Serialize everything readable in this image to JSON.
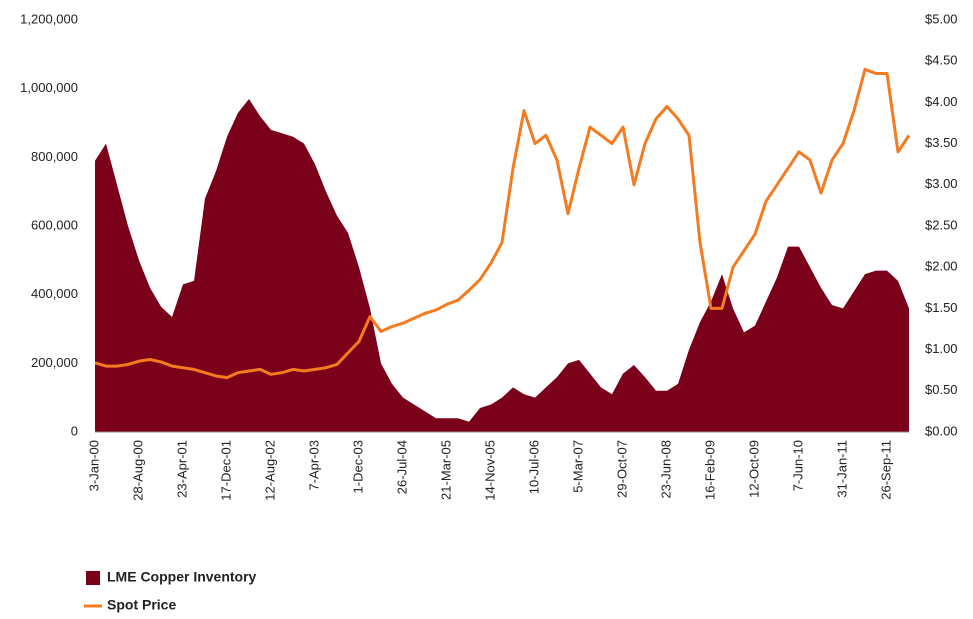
{
  "chart_data": {
    "type": "area_line",
    "categories": [
      "3-Jan-00",
      null,
      null,
      null,
      "28-Aug-00",
      null,
      null,
      null,
      "23-Apr-01",
      null,
      null,
      null,
      "17-Dec-01",
      null,
      null,
      null,
      "12-Aug-02",
      null,
      null,
      null,
      "7-Apr-03",
      null,
      null,
      null,
      "1-Dec-03",
      null,
      null,
      null,
      "26-Jul-04",
      null,
      null,
      null,
      "21-Mar-05",
      null,
      null,
      null,
      "14-Nov-05",
      null,
      null,
      null,
      "10-Jul-06",
      null,
      null,
      null,
      "5-Mar-07",
      null,
      null,
      null,
      "29-Oct-07",
      null,
      null,
      null,
      "23-Jun-08",
      null,
      null,
      null,
      "16-Feb-09",
      null,
      null,
      null,
      "12-Oct-09",
      null,
      null,
      null,
      "7-Jun-10",
      null,
      null,
      null,
      "31-Jan-11",
      null,
      null,
      null,
      "26-Sep-11",
      null,
      null
    ],
    "series": [
      {
        "name": "LME Copper Inventory",
        "color": "#7b0019",
        "kind": "area",
        "values": [
          790000,
          840000,
          720000,
          600000,
          500000,
          420000,
          365000,
          335000,
          430000,
          440000,
          680000,
          760000,
          860000,
          930000,
          970000,
          920000,
          880000,
          870000,
          860000,
          840000,
          780000,
          700000,
          630000,
          580000,
          480000,
          360000,
          200000,
          140000,
          100000,
          80000,
          60000,
          40000,
          40000,
          40000,
          30000,
          70000,
          80000,
          100000,
          130000,
          110000,
          100000,
          130000,
          160000,
          200000,
          210000,
          170000,
          130000,
          110000,
          170000,
          195000,
          160000,
          120000,
          120000,
          140000,
          240000,
          320000,
          380000,
          460000,
          360000,
          290000,
          310000,
          380000,
          450000,
          540000,
          540000,
          480000,
          420000,
          370000,
          360000,
          410000,
          460000,
          470000,
          470000,
          440000,
          360000
        ]
      },
      {
        "name": "Spot Price",
        "color": "#f47b20",
        "kind": "line",
        "axis": "y2",
        "values": [
          0.84,
          0.8,
          0.8,
          0.82,
          0.86,
          0.88,
          0.85,
          0.8,
          0.78,
          0.76,
          0.72,
          0.68,
          0.66,
          0.72,
          0.74,
          0.76,
          0.7,
          0.72,
          0.76,
          0.74,
          0.76,
          0.78,
          0.82,
          0.96,
          1.1,
          1.4,
          1.22,
          1.28,
          1.32,
          1.38,
          1.44,
          1.48,
          1.55,
          1.6,
          1.72,
          1.85,
          2.05,
          2.3,
          3.2,
          3.9,
          3.5,
          3.6,
          3.3,
          2.65,
          3.2,
          3.7,
          3.6,
          3.5,
          3.7,
          3.0,
          3.5,
          3.8,
          3.95,
          3.8,
          3.6,
          2.3,
          1.5,
          1.5,
          2.0,
          2.2,
          2.4,
          2.8,
          3.0,
          3.2,
          3.4,
          3.3,
          2.9,
          3.3,
          3.5,
          3.9,
          4.4,
          4.35,
          4.35,
          3.4,
          3.6
        ]
      }
    ],
    "ylim": [
      0,
      1200000
    ],
    "yticks": [
      0,
      {
        "value": 200000,
        "label": "200,000"
      },
      {
        "value": 400000,
        "label": "400,000"
      },
      {
        "value": 600000,
        "label": "600,000"
      },
      {
        "value": 800000,
        "label": "800,000"
      },
      {
        "value": 1000000,
        "label": "1,000,000"
      },
      {
        "value": 1200000,
        "label": "1,200,000"
      }
    ],
    "y2lim": [
      0,
      5
    ],
    "y2ticks": [
      {
        "value": 0,
        "label": "$0.00"
      },
      {
        "value": 0.5,
        "label": "$0.50"
      },
      {
        "value": 1,
        "label": "$1.00"
      },
      {
        "value": 1.5,
        "label": "$1.50"
      },
      {
        "value": 2,
        "label": "$2.00"
      },
      {
        "value": 2.5,
        "label": "$2.50"
      },
      {
        "value": 3,
        "label": "$3.00"
      },
      {
        "value": 3.5,
        "label": "$3.50"
      },
      {
        "value": 4,
        "label": "$4.00"
      },
      {
        "value": 4.5,
        "label": "$4.50"
      },
      {
        "value": 5,
        "label": "$5.00"
      }
    ],
    "legend": "bottom-left"
  }
}
